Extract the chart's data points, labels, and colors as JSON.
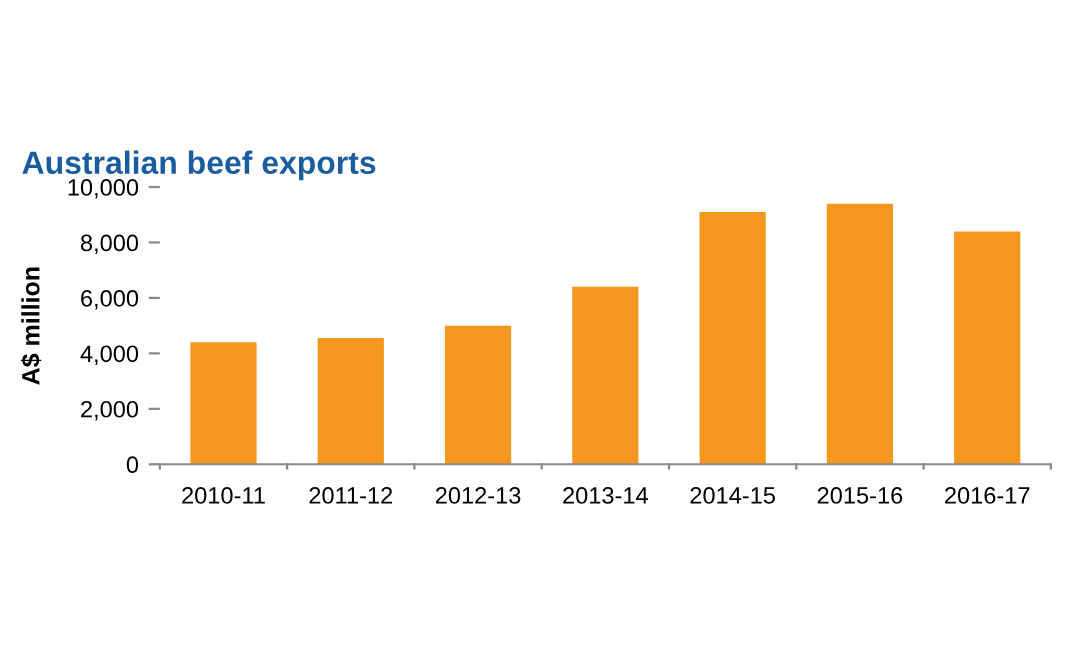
{
  "chart_data": {
    "type": "bar",
    "title": "Australian beef exports",
    "ylabel": "A$ million",
    "categories": [
      "2010-11",
      "2011-12",
      "2012-13",
      "2013-14",
      "2014-15",
      "2015-16",
      "2016-17"
    ],
    "values": [
      4400,
      4550,
      5000,
      6400,
      9100,
      9400,
      8400
    ],
    "color": "#f5961e",
    "ylim": [
      0,
      10000
    ],
    "yticks": [
      {
        "value": 0,
        "label": "0"
      },
      {
        "value": 2000,
        "label": "2,000"
      },
      {
        "value": 4000,
        "label": "4,000"
      },
      {
        "value": 6000,
        "label": "6,000"
      },
      {
        "value": 8000,
        "label": "8,000"
      },
      {
        "value": 10000,
        "label": "10,000"
      }
    ],
    "grid": false,
    "legend": false
  }
}
